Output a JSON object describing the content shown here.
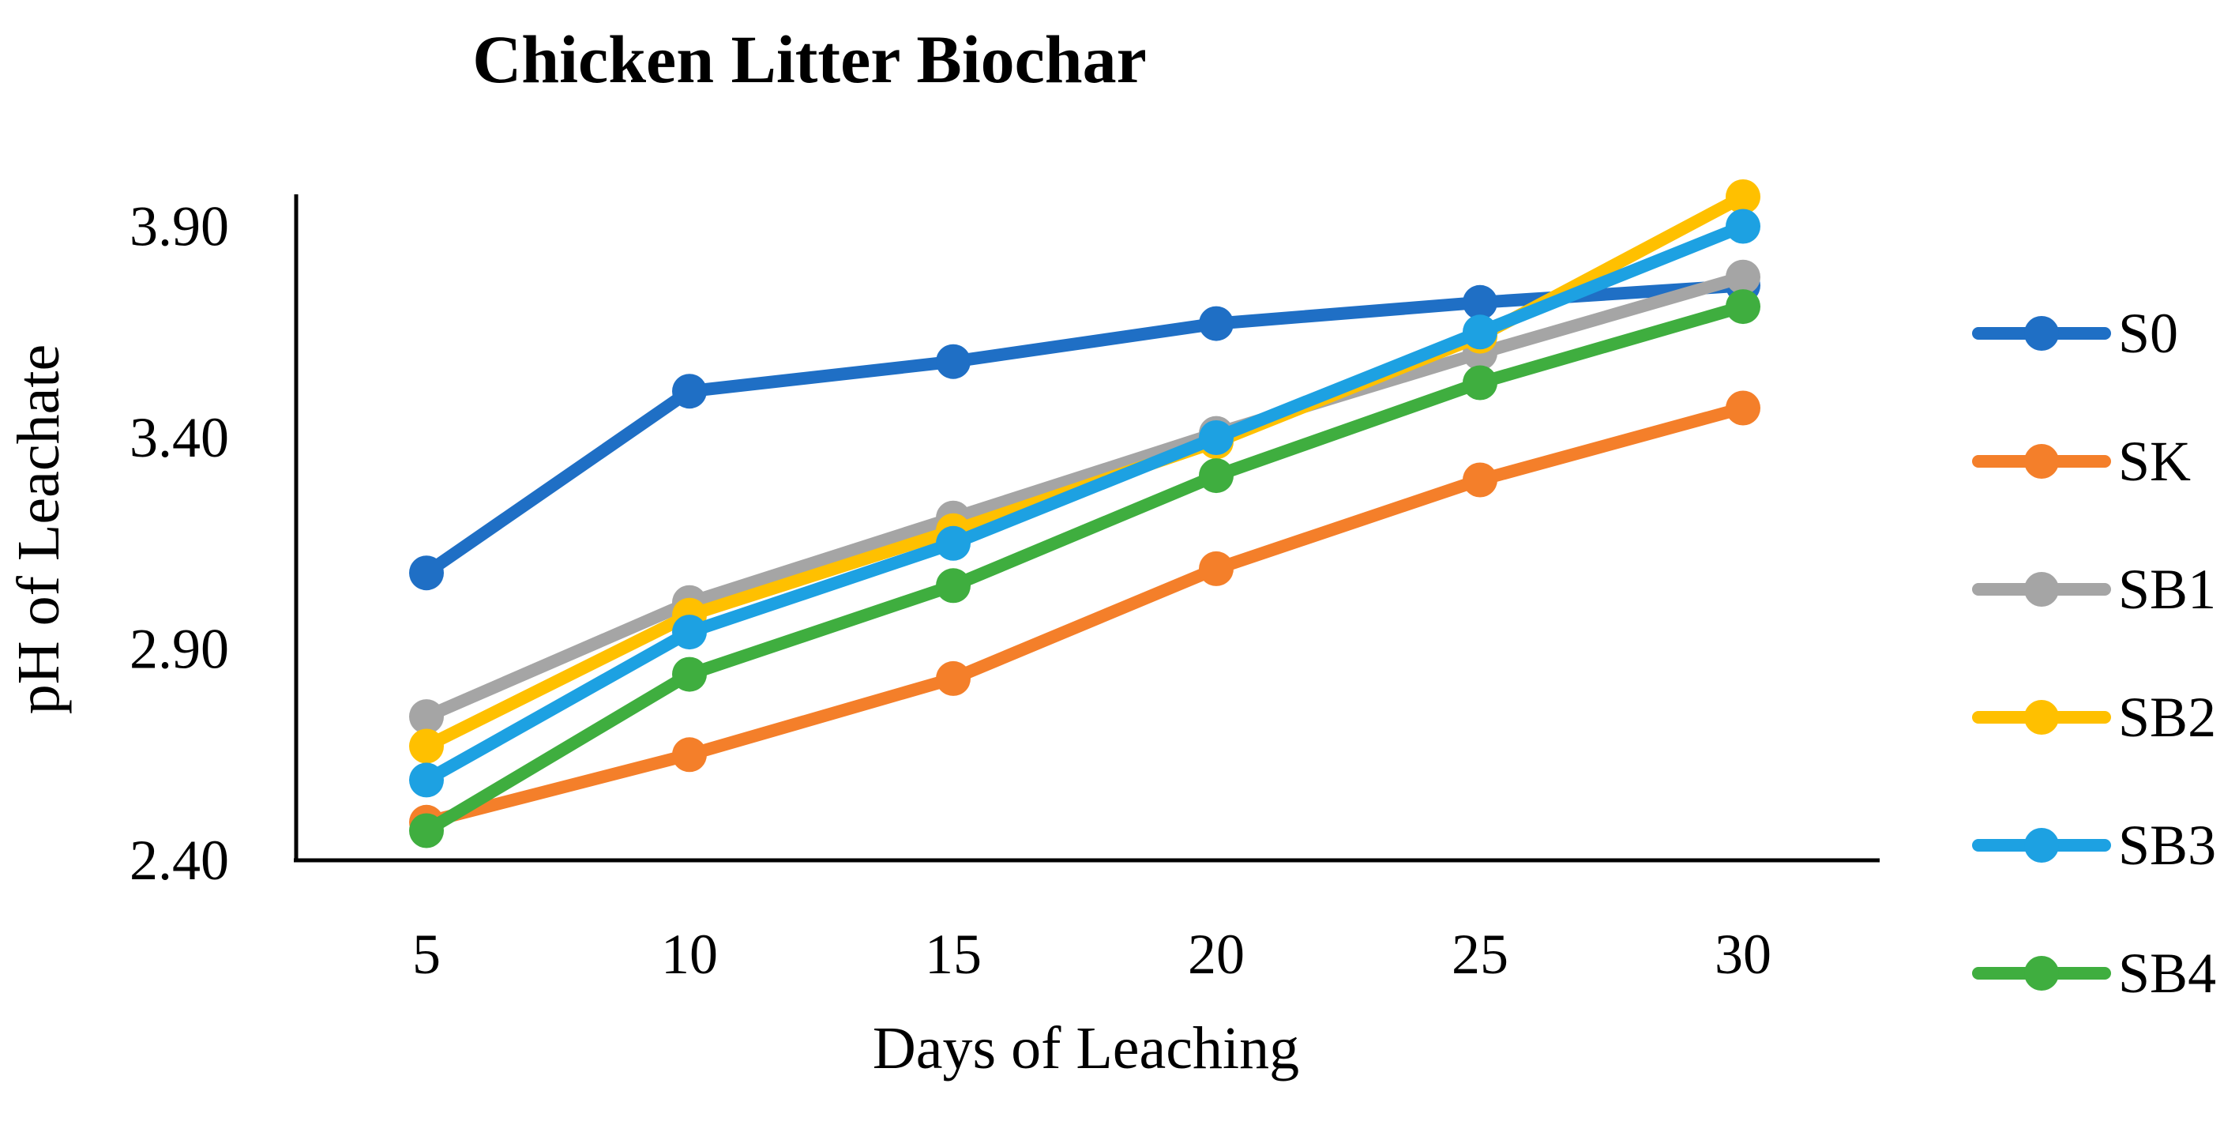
{
  "chart_data": {
    "type": "line",
    "title": "Chicken Litter Biochar",
    "xlabel": "Days of Leaching",
    "ylabel": "pH of Leachate",
    "x": [
      5,
      10,
      15,
      20,
      25,
      30
    ],
    "x_tick_labels": [
      "5",
      "10",
      "15",
      "20",
      "25",
      "30"
    ],
    "y_ticks": [
      2.4,
      2.9,
      3.4,
      3.9
    ],
    "y_tick_labels": [
      "2.40",
      "2.90",
      "3.40",
      "3.90"
    ],
    "ylim": [
      2.4,
      4.0
    ],
    "grid": false,
    "legend_position": "right",
    "series": [
      {
        "name": "S0",
        "color": "#1F6FC5",
        "values": [
          3.08,
          3.51,
          3.58,
          3.67,
          3.72,
          3.76
        ]
      },
      {
        "name": "SK",
        "color": "#F47F2A",
        "values": [
          2.49,
          2.65,
          2.83,
          3.09,
          3.3,
          3.47
        ]
      },
      {
        "name": "SB1",
        "color": "#A5A5A5",
        "values": [
          2.74,
          3.01,
          3.21,
          3.41,
          3.6,
          3.78
        ]
      },
      {
        "name": "SB2",
        "color": "#FFC000",
        "values": [
          2.67,
          2.98,
          3.18,
          3.39,
          3.64,
          3.97
        ]
      },
      {
        "name": "SB3",
        "color": "#1DA1E2",
        "values": [
          2.59,
          2.94,
          3.15,
          3.4,
          3.65,
          3.9
        ]
      },
      {
        "name": "SB4",
        "color": "#3FAE3F",
        "values": [
          2.47,
          2.84,
          3.05,
          3.31,
          3.53,
          3.71
        ]
      }
    ]
  }
}
